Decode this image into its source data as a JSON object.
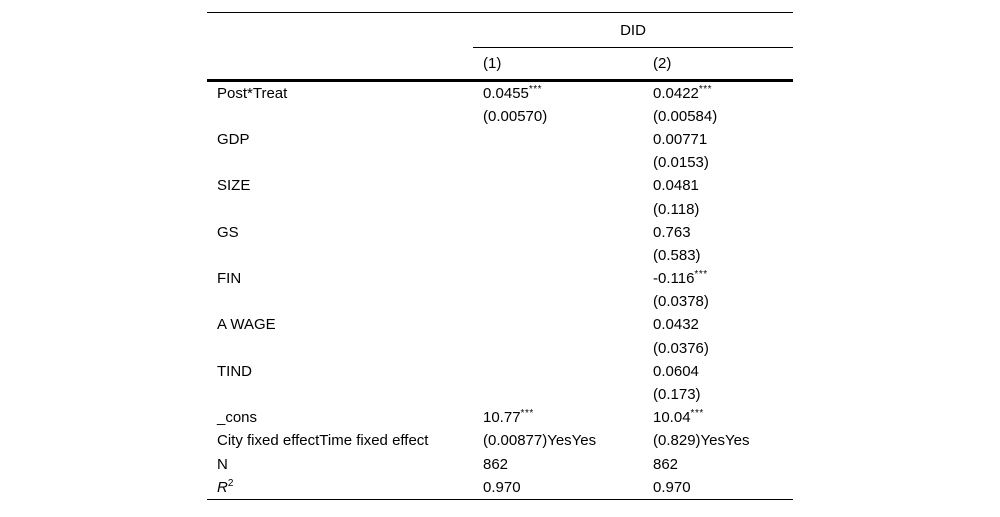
{
  "table": {
    "group_header": "DID",
    "column_headers": [
      "(1)",
      "(2)"
    ],
    "rows": [
      {
        "label": "Post*Treat",
        "c1": "0.0455",
        "c1s": "***",
        "c2": "0.0422",
        "c2s": "***"
      },
      {
        "label": "",
        "c1": "(0.00570)",
        "c2": "(0.00584)"
      },
      {
        "label": "GDP",
        "c1": "",
        "c2": "0.00771"
      },
      {
        "label": "",
        "c1": "",
        "c2": "(0.0153)"
      },
      {
        "label": "SIZE",
        "c1": "",
        "c2": "0.0481"
      },
      {
        "label": "",
        "c1": "",
        "c2": "(0.118)"
      },
      {
        "label": "GS",
        "c1": "",
        "c2": "0.763"
      },
      {
        "label": "",
        "c1": "",
        "c2": "(0.583)"
      },
      {
        "label": "FIN",
        "c1": "",
        "c2": "-0.116",
        "c2s": "***"
      },
      {
        "label": "",
        "c1": "",
        "c2": "(0.0378)"
      },
      {
        "label": "A WAGE",
        "c1": "",
        "c2": "0.0432"
      },
      {
        "label": "",
        "c1": "",
        "c2": "(0.0376)"
      },
      {
        "label": "TIND",
        "c1": "",
        "c2": "0.0604"
      },
      {
        "label": "",
        "c1": "",
        "c2": "(0.173)"
      },
      {
        "label": "_cons",
        "c1": "10.77",
        "c1s": "***",
        "c2": "10.04",
        "c2s": "***"
      },
      {
        "label": "City fixed effectTime fixed effect",
        "c1": "(0.00877)YesYes",
        "c2": "(0.829)YesYes"
      },
      {
        "label": "N",
        "c1": "862",
        "c2": "862"
      },
      {
        "label": "R",
        "label_sup": "2",
        "label_italic": true,
        "c1": "0.970",
        "c2": "0.970"
      }
    ],
    "colors": {
      "text": "#000000",
      "rule": "#000000",
      "background": "#ffffff"
    }
  }
}
